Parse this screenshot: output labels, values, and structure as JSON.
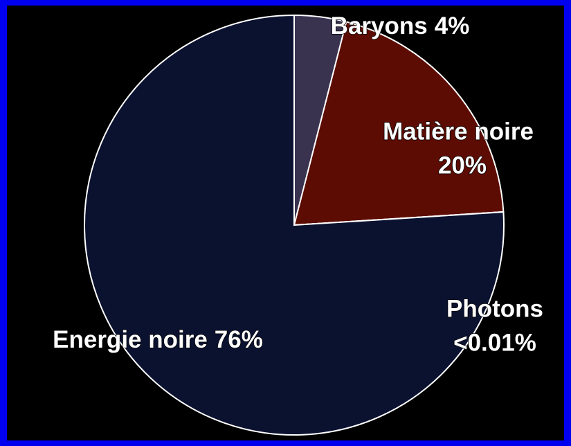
{
  "chart_data": {
    "type": "pie",
    "categories": [
      "Baryons",
      "Matière noire",
      "Photons",
      "Energie noire"
    ],
    "values": [
      4,
      20,
      0.01,
      76
    ],
    "value_labels": [
      "4%",
      "20%",
      "<0.01%",
      "76%"
    ],
    "colors": [
      "#3a3350",
      "#5c0c02",
      "#4fb0c8",
      "#0b1230"
    ]
  }
}
